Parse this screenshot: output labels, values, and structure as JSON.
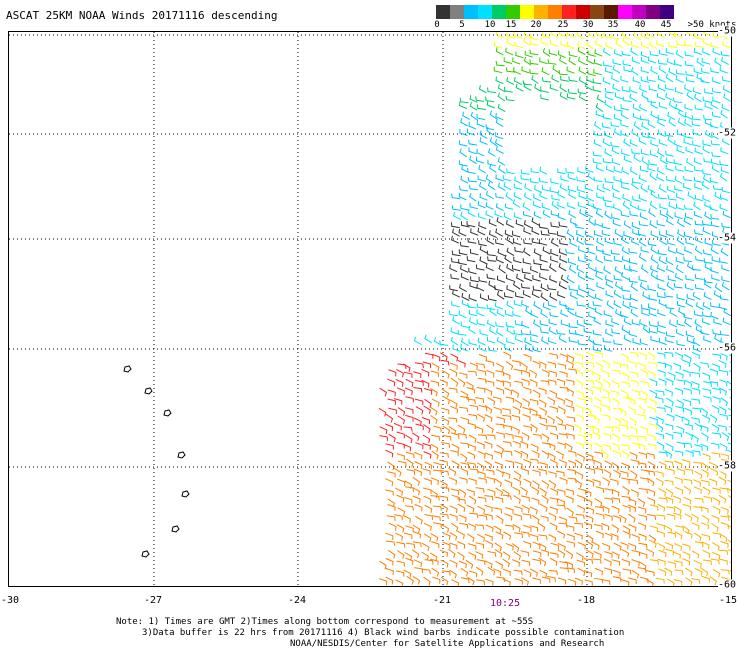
{
  "title": "ASCAT 25KM NOAA Winds 20171116 descending",
  "colorbar": {
    "colors": [
      "#333333",
      "#808080",
      "#00bfff",
      "#00e0ff",
      "#00cc66",
      "#33cc00",
      "#ffff00",
      "#ffb000",
      "#ff7f00",
      "#ff2020",
      "#cc0000",
      "#8b4513",
      "#5a1a00",
      "#ff00ff",
      "#c000c0",
      "#800080",
      "#400080"
    ],
    "labels": [
      "0",
      "5",
      "10",
      "15",
      "20",
      "25",
      "30",
      "35",
      "40",
      "45",
      ">50 knots"
    ]
  },
  "map": {
    "lat_labels": [
      "-50",
      "-52",
      "-54",
      "-56",
      "-58",
      "-60"
    ],
    "lon_labels": [
      "-30",
      "-27",
      "-24",
      "-21",
      "-18",
      "-15"
    ],
    "time_label": "10:25"
  },
  "notes": [
    "Note: 1) Times are GMT 2)Times along bottom correspond to measurement at ~55S",
    "3)Data buffer is 22 hrs from 20171116 4) Black wind barbs indicate possible contamination",
    "NOAA/NESDIS/Center for Satellite Applications and Research"
  ]
}
